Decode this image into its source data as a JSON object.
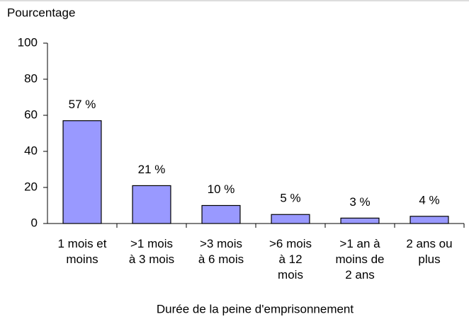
{
  "chart_data": {
    "type": "bar",
    "y_axis_label": "Pourcentage",
    "x_axis_label": "Durée de la peine d'emprisonnement",
    "categories": [
      "1 mois et\nmoins",
      ">1 mois\nà 3 mois",
      ">3 mois\nà 6 mois",
      ">6 mois\nà 12\nmois",
      ">1 an à\nmoins de\n2 ans",
      "2 ans ou\nplus"
    ],
    "values": [
      57,
      21,
      10,
      5,
      3,
      4
    ],
    "value_labels": [
      "57 %",
      "21 %",
      "10 %",
      "5 %",
      "3 %",
      "4 %"
    ],
    "color": "#9999ff",
    "ylim": [
      0,
      100
    ],
    "yticks": [
      0,
      20,
      40,
      60,
      80,
      100
    ],
    "grid": false
  }
}
